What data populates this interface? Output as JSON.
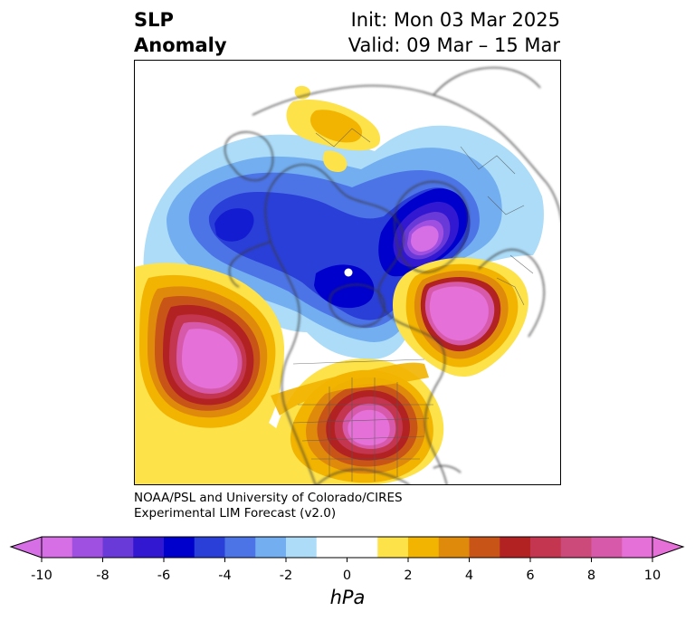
{
  "title": {
    "left_line1": "SLP",
    "left_line2": "Anomaly",
    "right_line1": "Init: Mon 03 Mar 2025",
    "right_line2": "Valid: 09 Mar – 15 Mar"
  },
  "credit": {
    "line1": "NOAA/PSL and University of Colorado/CIRES",
    "line2": "Experimental LIM Forecast (v2.0)"
  },
  "colorbar": {
    "unit": "hPa",
    "min": -10,
    "max": 10,
    "step": 1,
    "ticks": [
      "-10",
      "-8",
      "-6",
      "-4",
      "-2",
      "0",
      "2",
      "4",
      "6",
      "8",
      "10"
    ],
    "extend": "both",
    "colors": [
      "#d66ee6",
      "#a050e0",
      "#6a3ad8",
      "#3218d0",
      "#0000cc",
      "#2a3fd8",
      "#4c74e6",
      "#72aef0",
      "#acdcf8",
      "#ffffff",
      "#ffffff",
      "#fde24a",
      "#f2b400",
      "#e08a0c",
      "#c85418",
      "#b22222",
      "#c43650",
      "#cc4a7a",
      "#d75aaa",
      "#e470d8"
    ],
    "under_color": "#d66ee6",
    "over_color": "#e470d8"
  },
  "map": {
    "projection": "north polar stereographic",
    "features": [
      {
        "name": "low-greenland",
        "kind": "low",
        "peak_hpa": -10
      },
      {
        "name": "low-canada",
        "kind": "low",
        "peak_hpa": -6
      },
      {
        "name": "high-north-pacific",
        "kind": "high",
        "peak_hpa": 10
      },
      {
        "name": "high-eastern-us",
        "kind": "high",
        "peak_hpa": 10
      },
      {
        "name": "high-north-atlantic",
        "kind": "high",
        "peak_hpa": 10
      },
      {
        "name": "weak-high-siberia",
        "kind": "high",
        "peak_hpa": 2
      }
    ]
  }
}
